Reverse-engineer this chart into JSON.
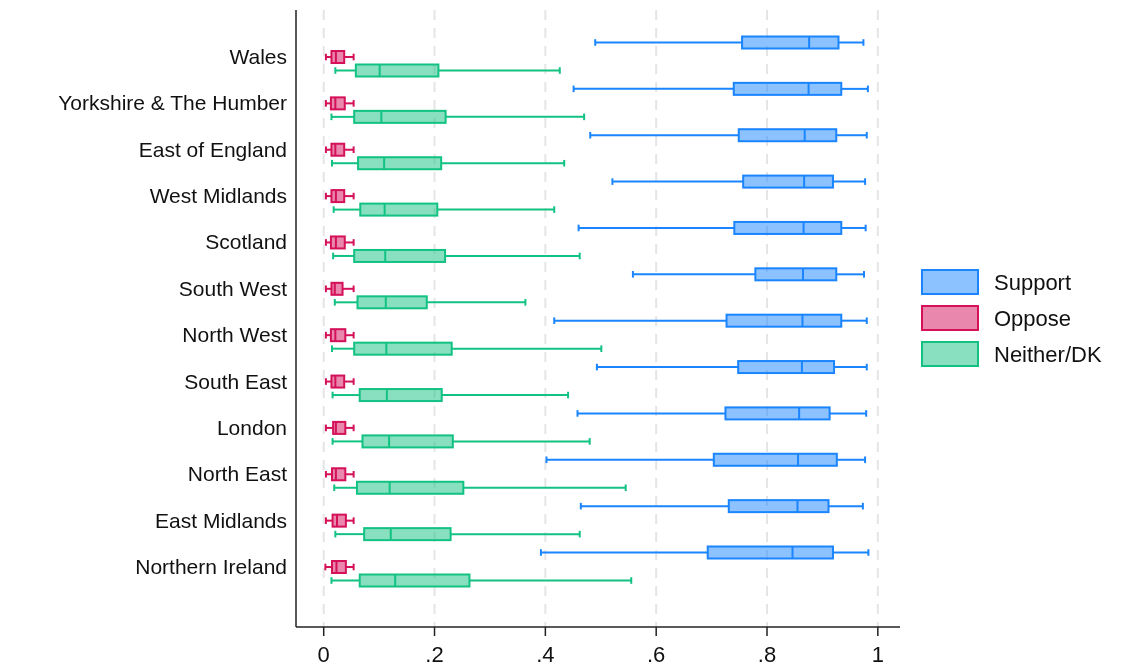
{
  "chart_data": {
    "type": "box",
    "orientation": "horizontal",
    "categories": [
      "Wales",
      "Yorkshire & The Humber",
      "East of England",
      "West Midlands",
      "Scotland",
      "South West",
      "North West",
      "South East",
      "London",
      "North East",
      "East Midlands",
      "Northern Ireland"
    ],
    "xlim": [
      -0.05,
      1.04
    ],
    "xticks": [
      0,
      {
        "value": 0.2,
        "label": ".2"
      },
      {
        "value": 0.4,
        "label": ".4"
      },
      {
        "value": 0.6,
        "label": ".6"
      },
      {
        "value": 0.8,
        "label": ".8"
      },
      1
    ],
    "grid": "x",
    "legend": "right",
    "series": [
      {
        "name": "Support",
        "color": "#1a85ff",
        "boxes": [
          {
            "low": 0.49,
            "q1": 0.755,
            "median": 0.876,
            "q3": 0.929,
            "high": 0.974
          },
          {
            "low": 0.451,
            "q1": 0.74,
            "median": 0.875,
            "q3": 0.934,
            "high": 0.982
          },
          {
            "low": 0.481,
            "q1": 0.749,
            "median": 0.868,
            "q3": 0.925,
            "high": 0.98
          },
          {
            "low": 0.521,
            "q1": 0.757,
            "median": 0.867,
            "q3": 0.919,
            "high": 0.977
          },
          {
            "low": 0.46,
            "q1": 0.741,
            "median": 0.866,
            "q3": 0.934,
            "high": 0.978
          },
          {
            "low": 0.558,
            "q1": 0.779,
            "median": 0.865,
            "q3": 0.925,
            "high": 0.975
          },
          {
            "low": 0.416,
            "q1": 0.727,
            "median": 0.864,
            "q3": 0.934,
            "high": 0.98
          },
          {
            "low": 0.493,
            "q1": 0.748,
            "median": 0.863,
            "q3": 0.921,
            "high": 0.98
          },
          {
            "low": 0.458,
            "q1": 0.725,
            "median": 0.858,
            "q3": 0.913,
            "high": 0.979
          },
          {
            "low": 0.402,
            "q1": 0.704,
            "median": 0.856,
            "q3": 0.926,
            "high": 0.977
          },
          {
            "low": 0.464,
            "q1": 0.731,
            "median": 0.855,
            "q3": 0.911,
            "high": 0.973
          },
          {
            "low": 0.392,
            "q1": 0.693,
            "median": 0.846,
            "q3": 0.919,
            "high": 0.983
          }
        ]
      },
      {
        "name": "Oppose",
        "color": "#d41159",
        "boxes": [
          {
            "low": 0.004,
            "q1": 0.014,
            "median": 0.022,
            "q3": 0.037,
            "high": 0.054
          },
          {
            "low": 0.004,
            "q1": 0.013,
            "median": 0.021,
            "q3": 0.038,
            "high": 0.054
          },
          {
            "low": 0.004,
            "q1": 0.014,
            "median": 0.021,
            "q3": 0.037,
            "high": 0.054
          },
          {
            "low": 0.004,
            "q1": 0.014,
            "median": 0.022,
            "q3": 0.037,
            "high": 0.054
          },
          {
            "low": 0.004,
            "q1": 0.013,
            "median": 0.022,
            "q3": 0.038,
            "high": 0.054
          },
          {
            "low": 0.004,
            "q1": 0.014,
            "median": 0.02,
            "q3": 0.034,
            "high": 0.054
          },
          {
            "low": 0.004,
            "q1": 0.013,
            "median": 0.021,
            "q3": 0.039,
            "high": 0.054
          },
          {
            "low": 0.004,
            "q1": 0.014,
            "median": 0.021,
            "q3": 0.037,
            "high": 0.054
          },
          {
            "low": 0.004,
            "q1": 0.017,
            "median": 0.022,
            "q3": 0.039,
            "high": 0.054
          },
          {
            "low": 0.004,
            "q1": 0.015,
            "median": 0.022,
            "q3": 0.039,
            "high": 0.054
          },
          {
            "low": 0.004,
            "q1": 0.016,
            "median": 0.024,
            "q3": 0.04,
            "high": 0.054
          },
          {
            "low": 0.003,
            "q1": 0.015,
            "median": 0.023,
            "q3": 0.04,
            "high": 0.054
          }
        ]
      },
      {
        "name": "Neither/DK",
        "color": "#12c283",
        "boxes": [
          {
            "low": 0.021,
            "q1": 0.058,
            "median": 0.101,
            "q3": 0.207,
            "high": 0.426
          },
          {
            "low": 0.014,
            "q1": 0.055,
            "median": 0.104,
            "q3": 0.22,
            "high": 0.47
          },
          {
            "low": 0.015,
            "q1": 0.062,
            "median": 0.109,
            "q3": 0.212,
            "high": 0.434
          },
          {
            "low": 0.018,
            "q1": 0.066,
            "median": 0.11,
            "q3": 0.205,
            "high": 0.416
          },
          {
            "low": 0.017,
            "q1": 0.055,
            "median": 0.111,
            "q3": 0.219,
            "high": 0.462
          },
          {
            "low": 0.02,
            "q1": 0.061,
            "median": 0.112,
            "q3": 0.186,
            "high": 0.364
          },
          {
            "low": 0.015,
            "q1": 0.055,
            "median": 0.113,
            "q3": 0.231,
            "high": 0.501
          },
          {
            "low": 0.016,
            "q1": 0.065,
            "median": 0.114,
            "q3": 0.213,
            "high": 0.441
          },
          {
            "low": 0.016,
            "q1": 0.07,
            "median": 0.118,
            "q3": 0.233,
            "high": 0.48
          },
          {
            "low": 0.019,
            "q1": 0.06,
            "median": 0.119,
            "q3": 0.252,
            "high": 0.545
          },
          {
            "low": 0.021,
            "q1": 0.073,
            "median": 0.121,
            "q3": 0.229,
            "high": 0.462
          },
          {
            "low": 0.014,
            "q1": 0.065,
            "median": 0.129,
            "q3": 0.263,
            "high": 0.555
          }
        ]
      }
    ]
  }
}
